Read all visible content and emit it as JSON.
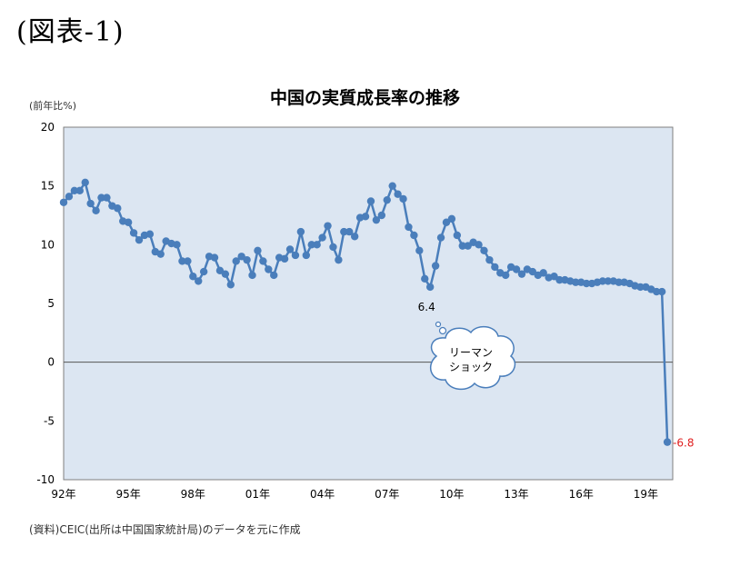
{
  "figure_label": "(図表-1)",
  "unit_label": "(前年比%)",
  "source_note": "(資料)CEIC(出所は中国国家統計局)のデータを元に作成",
  "colors": {
    "line": "#4a7ebb",
    "plot_bg": "#dce6f2",
    "annotation_red": "#e02020",
    "zero_line": "#555555"
  },
  "chart_data": {
    "type": "line",
    "title": "中国の実質成長率の推移",
    "ylabel": "(前年比%)",
    "ylim": [
      -10,
      20
    ],
    "xlim": [
      1992.0,
      2020.25
    ],
    "y_ticks": [
      "20",
      "15",
      "10",
      "5",
      "0",
      "-5",
      "-10"
    ],
    "x_ticks": [
      "92年",
      "95年",
      "98年",
      "01年",
      "04年",
      "07年",
      "10年",
      "13年",
      "16年",
      "19年"
    ],
    "grid": false,
    "legend": "none",
    "series": [
      {
        "x": [
          1992.0,
          1992.25,
          1992.5,
          1992.75,
          1993.0,
          1993.25,
          1993.5,
          1993.75,
          1994.0,
          1994.25,
          1994.5,
          1994.75,
          1995.0,
          1995.25,
          1995.5,
          1995.75,
          1996.0,
          1996.25,
          1996.5,
          1996.75,
          1997.0,
          1997.25,
          1997.5,
          1997.75,
          1998.0,
          1998.25,
          1998.5,
          1998.75,
          1999.0,
          1999.25,
          1999.5,
          1999.75,
          2000.0,
          2000.25,
          2000.5,
          2000.75,
          2001.0,
          2001.25,
          2001.5,
          2001.75,
          2002.0,
          2002.25,
          2002.5,
          2002.75,
          2003.0,
          2003.25,
          2003.5,
          2003.75,
          2004.0,
          2004.25,
          2004.5,
          2004.75,
          2005.0,
          2005.25,
          2005.5,
          2005.75,
          2006.0,
          2006.25,
          2006.5,
          2006.75,
          2007.0,
          2007.25,
          2007.5,
          2007.75,
          2008.0,
          2008.25,
          2008.5,
          2008.75,
          2009.0,
          2009.25,
          2009.5,
          2009.75,
          2010.0,
          2010.25,
          2010.5,
          2010.75,
          2011.0,
          2011.25,
          2011.5,
          2011.75,
          2012.0,
          2012.25,
          2012.5,
          2012.75,
          2013.0,
          2013.25,
          2013.5,
          2013.75,
          2014.0,
          2014.25,
          2014.5,
          2014.75,
          2015.0,
          2015.25,
          2015.5,
          2015.75,
          2016.0,
          2016.25,
          2016.5,
          2016.75,
          2017.0,
          2017.25,
          2017.5,
          2017.75,
          2018.0,
          2018.25,
          2018.5,
          2018.75,
          2019.0,
          2019.25,
          2019.5,
          2019.75,
          2020.0
        ],
        "y": [
          13.6,
          14.1,
          14.6,
          14.6,
          15.3,
          13.5,
          12.9,
          14.0,
          14.0,
          13.3,
          13.1,
          12.0,
          11.9,
          11.0,
          10.4,
          10.8,
          10.9,
          9.4,
          9.2,
          10.3,
          10.1,
          10.0,
          8.6,
          8.6,
          7.3,
          6.9,
          7.7,
          9.0,
          8.9,
          7.8,
          7.5,
          6.6,
          8.6,
          9.0,
          8.7,
          7.4,
          9.5,
          8.6,
          7.9,
          7.4,
          8.9,
          8.8,
          9.6,
          9.1,
          11.1,
          9.1,
          10.0,
          10.0,
          10.6,
          11.6,
          9.8,
          8.7,
          11.1,
          11.1,
          10.7,
          12.3,
          12.4,
          13.7,
          12.1,
          12.5,
          13.8,
          15.0,
          14.3,
          13.9,
          11.5,
          10.8,
          9.5,
          7.1,
          6.4,
          8.2,
          10.6,
          11.9,
          12.2,
          10.8,
          9.9,
          9.9,
          10.2,
          10.0,
          9.5,
          8.7,
          8.1,
          7.6,
          7.4,
          8.1,
          7.9,
          7.5,
          7.9,
          7.7,
          7.4,
          7.6,
          7.2,
          7.3,
          7.0,
          7.0,
          6.9,
          6.8,
          6.8,
          6.7,
          6.7,
          6.8,
          6.9,
          6.9,
          6.9,
          6.8,
          6.8,
          6.7,
          6.5,
          6.4,
          6.4,
          6.2,
          6.0,
          6.0,
          -6.8
        ]
      }
    ],
    "annotations": {
      "low_2009": {
        "label": "6.4",
        "x": 2009.0,
        "y": 6.4
      },
      "bubble": {
        "lines": [
          "リーマン",
          "ショック"
        ]
      },
      "last": {
        "label": "-6.8",
        "x": 2020.0,
        "y": -6.8
      }
    }
  }
}
